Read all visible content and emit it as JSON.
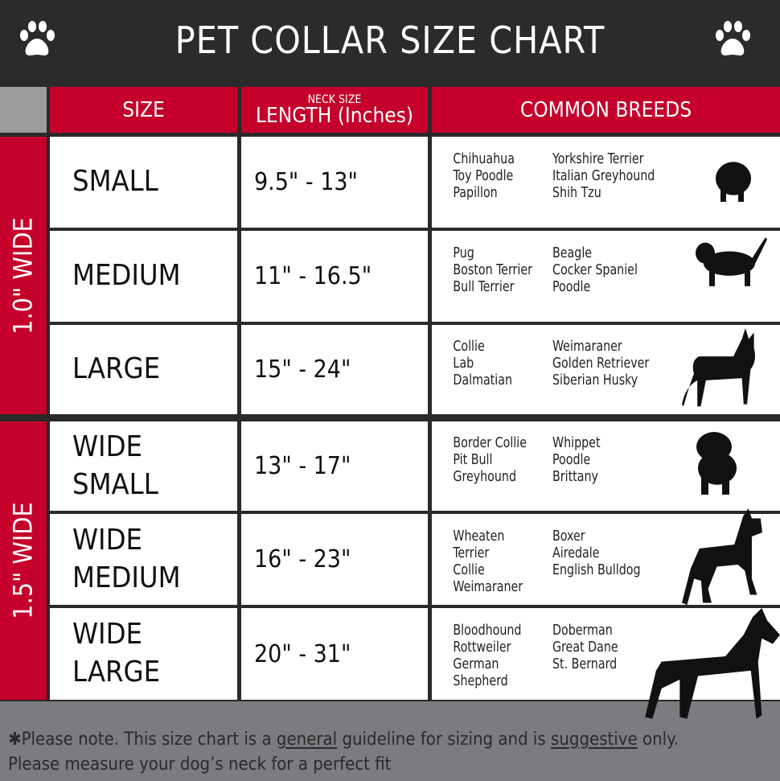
{
  "title": "PET COLLAR SIZE CHART",
  "header": {
    "size": "SIZE",
    "neck_size": "NECK SIZE",
    "length": "LENGTH (Inches)",
    "breeds": "COMMON BREEDS"
  },
  "groups": [
    {
      "label": "1.0\" WIDE"
    },
    {
      "label": "1.5\" WIDE"
    }
  ],
  "rows": [
    {
      "size_line1": "SMALL",
      "size_line2": "",
      "length": "9.5\" - 13\"",
      "breeds_a": [
        "Chihuahua",
        "Toy Poodle",
        "Papillon"
      ],
      "breeds_b": [
        "Yorkshire Terrier",
        "Italian Greyhound",
        "Shih Tzu"
      ]
    },
    {
      "size_line1": "MEDIUM",
      "size_line2": "",
      "length": "11\" - 16.5\"",
      "breeds_a": [
        "Pug",
        "Boston Terrier",
        "Bull Terrier"
      ],
      "breeds_b": [
        "Beagle",
        "Cocker Spaniel",
        "Poodle"
      ]
    },
    {
      "size_line1": "LARGE",
      "size_line2": "",
      "length": "15\" - 24\"",
      "breeds_a": [
        "Collie",
        "Lab",
        "Dalmatian"
      ],
      "breeds_b": [
        "Weimaraner",
        "Golden Retriever",
        "Siberian Husky"
      ]
    },
    {
      "size_line1": "WIDE",
      "size_line2": "SMALL",
      "length": "13\" - 17\"",
      "breeds_a": [
        "Border Collie",
        "Pit Bull",
        "Greyhound"
      ],
      "breeds_b": [
        "Whippet",
        "Poodle",
        "Brittany"
      ]
    },
    {
      "size_line1": "WIDE",
      "size_line2": "MEDIUM",
      "length": "16\" - 23\"",
      "breeds_a": [
        "Wheaten Terrier",
        "Collie",
        "Weimaraner"
      ],
      "breeds_b": [
        "Boxer",
        "Airedale",
        "English Bulldog"
      ]
    },
    {
      "size_line1": "WIDE",
      "size_line2": "LARGE",
      "length": "20\" - 31\"",
      "breeds_a": [
        "Bloodhound",
        "Rottweiler",
        "German Shepherd"
      ],
      "breeds_b": [
        "Doberman",
        "Great Dane",
        "St. Bernard"
      ]
    }
  ],
  "footer": {
    "p1": "✱Please note. This size chart is a ",
    "u1": "general",
    "p2": " guideline for sizing and is ",
    "u2": "suggestive",
    "p3": " only.",
    "line2": "Please measure your dog’s neck for a perfect fit"
  },
  "colors": {
    "red": "#c4002b",
    "dark": "#2b2b2b",
    "gray": "#7b7c80"
  }
}
